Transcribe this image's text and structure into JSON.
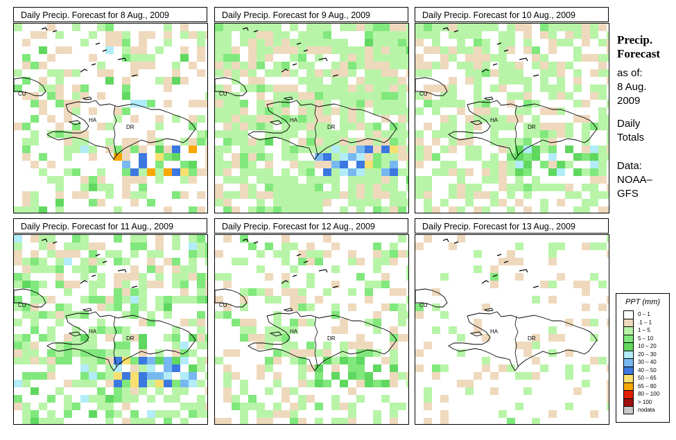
{
  "panels": [
    {
      "title": "Daily Precip. Forecast for  8 Aug., 2009",
      "seed": 11,
      "base": [
        0.62,
        0.18,
        0.12,
        0.05,
        0.02,
        0.01
      ],
      "hotspot": {
        "rain": [
          3,
          3,
          4,
          7,
          9,
          9,
          7,
          8,
          3,
          6,
          7
        ]
      }
    },
    {
      "title": "Daily Precip. Forecast for  9 Aug., 2009",
      "seed": 23,
      "base": [
        0.2,
        0.18,
        0.52,
        0.08,
        0.02,
        0.0
      ],
      "hotspot": {
        "rain": [
          5,
          6,
          7,
          7,
          8,
          6,
          7,
          5,
          6
        ]
      }
    },
    {
      "title": "Daily Precip. Forecast for  10 Aug., 2009",
      "seed": 37,
      "base": [
        0.38,
        0.2,
        0.38,
        0.04,
        0.0,
        0.0
      ],
      "hotspot": {
        "rain": [
          4,
          5,
          4,
          3
        ]
      }
    },
    {
      "title": "Daily Precip. Forecast for  11 Aug., 2009",
      "seed": 41,
      "base": [
        0.45,
        0.12,
        0.25,
        0.12,
        0.04,
        0.02
      ],
      "hotspot": {
        "rain": [
          7,
          8,
          7,
          6,
          6,
          5,
          5,
          6,
          7,
          8
        ]
      }
    },
    {
      "title": "Daily Precip. Forecast for  12 Aug., 2009",
      "seed": 53,
      "base": [
        0.58,
        0.18,
        0.2,
        0.04,
        0.0,
        0.0
      ],
      "hotspot": {
        "rain": [
          4,
          4,
          3
        ]
      }
    },
    {
      "title": "Daily Precip. Forecast for  13 Aug., 2009",
      "seed": 67,
      "base": [
        0.82,
        0.1,
        0.07,
        0.01,
        0.0,
        0.0
      ],
      "hotspot": {
        "rain": []
      }
    }
  ],
  "map_labels": {
    "cu": "CU",
    "ha": "HA",
    "dr": "DR"
  },
  "sidebar": {
    "title_line1": "Precip.",
    "title_line2": "Forecast",
    "as_of": "as of:",
    "date_line1": "8 Aug.",
    "date_line2": "2009",
    "daily_line1": "Daily",
    "daily_line2": "Totals",
    "data_line1": "Data:",
    "data_line2": "NOAA–",
    "data_line3": "GFS"
  },
  "legend": {
    "title": "PPT (mm)",
    "items": [
      {
        "label": "0 – 1",
        "color": "#ffffff"
      },
      {
        "label": ".1 – 1",
        "color": "#efd9bd"
      },
      {
        "label": "1 – 5",
        "color": "#b8f4a8"
      },
      {
        "label": "5 – 10",
        "color": "#80e87c"
      },
      {
        "label": "10 – 20",
        "color": "#60d860"
      },
      {
        "label": "20 – 30",
        "color": "#b2ecf8"
      },
      {
        "label": "30 – 40",
        "color": "#78b8f0"
      },
      {
        "label": "40 – 50",
        "color": "#3c78e0"
      },
      {
        "label": "50 – 65",
        "color": "#f8e070"
      },
      {
        "label": "65 – 80",
        "color": "#f8a800"
      },
      {
        "label": "80 – 100",
        "color": "#e02000"
      },
      {
        "label": "> 100",
        "color": "#a01010"
      },
      {
        "label": "nodata",
        "color": "#c8c8c8"
      }
    ]
  }
}
